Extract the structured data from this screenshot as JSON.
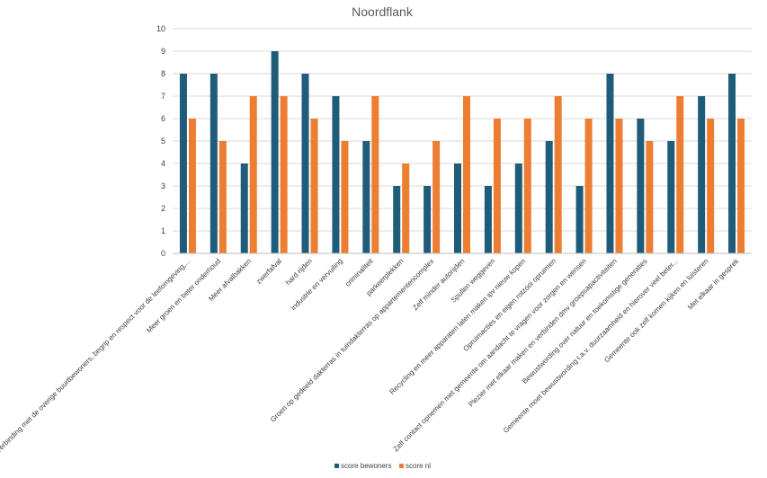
{
  "chart_data": {
    "type": "bar",
    "title": "Noordflank",
    "categories": [
      "Verbinding met de overige buurtbewoners, begrip en respect voor de leefomgeving,...",
      "Meer groen en beter onderhoud",
      "Meer afvalbakken",
      "zwerfafval",
      "hard rijden",
      "industrie en vervuiling",
      "criminaliteit",
      "parkeerplekken",
      "Groen op gedeeld dakterras in tuindakterras op appartementencomplex",
      "Zelf minder autorijden",
      "Spullen weggeven",
      "Recycling en meer apparaten laten maken ipv nieuw kopen",
      "Opruimacties en eigen rotzooi opruimen",
      "Zelf contact opnemen met gemeente om aandacht te vragen voor zorgen en wensen",
      "Plezier met elkaar maken en verbinden dmv groepsapactiviteiten",
      "Bewustwording over natuur en toekomstige generaties",
      "Gemeente moet bewustwording t.a.v. duurzaamheid en hierover veel beter...",
      "Gemeente ook zelf komen kijken en luisteren",
      "Met elkaar in gesprek"
    ],
    "series": [
      {
        "name": "score bewoners",
        "color": "#1f5c7a",
        "values": [
          8,
          8,
          4,
          9,
          8,
          7,
          5,
          3,
          3,
          4,
          3,
          4,
          5,
          3,
          8,
          6,
          5,
          7,
          8
        ]
      },
      {
        "name": "score nl",
        "color": "#ed7d31",
        "values": [
          6,
          5,
          7,
          7,
          6,
          5,
          7,
          4,
          5,
          7,
          6,
          6,
          7,
          6,
          6,
          5,
          7,
          6,
          6
        ]
      }
    ],
    "ylim": [
      0,
      10
    ],
    "yticks": [
      0,
      1,
      2,
      3,
      4,
      5,
      6,
      7,
      8,
      9,
      10
    ],
    "grid": true,
    "legend": "bottom"
  }
}
